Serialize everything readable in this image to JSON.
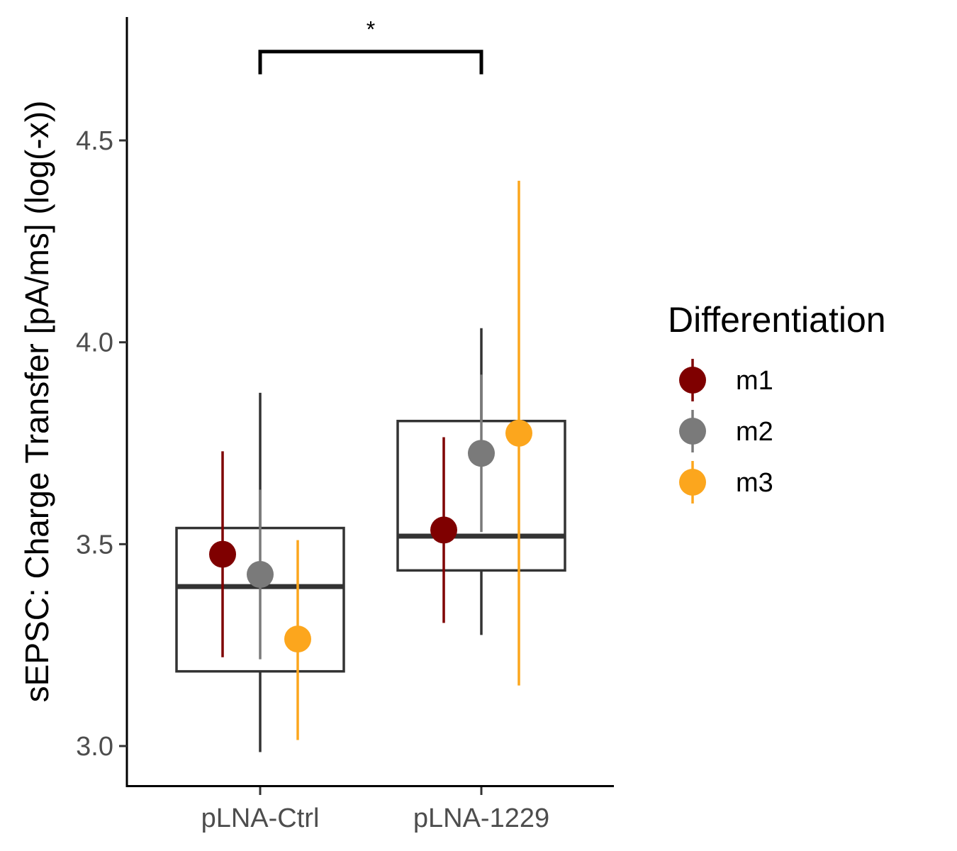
{
  "chart_data": {
    "type": "boxplot",
    "title": "",
    "xlabel": "",
    "ylabel": "sEPSC: Charge Transfer [pA/ms] (log(-x))",
    "categories": [
      "pLNA-Ctrl",
      "pLNA-1229"
    ],
    "ylim": [
      2.9,
      4.75
    ],
    "yticks": [
      3.0,
      3.5,
      4.0,
      4.5
    ],
    "ytick_labels": [
      "3.0",
      "3.5",
      "4.0",
      "4.5"
    ],
    "grid": false,
    "boxes": [
      {
        "category": "pLNA-Ctrl",
        "q1": 3.185,
        "median": 3.395,
        "q3": 3.54,
        "whisker_low": 2.985,
        "whisker_high": 3.875
      },
      {
        "category": "pLNA-1229",
        "q1": 3.435,
        "median": 3.52,
        "q3": 3.805,
        "whisker_low": 3.275,
        "whisker_high": 4.035
      }
    ],
    "series": [
      {
        "name": "m1",
        "color": "#7f0000",
        "points": [
          {
            "category": "pLNA-Ctrl",
            "mean": 3.475,
            "low": 3.22,
            "high": 3.73
          },
          {
            "category": "pLNA-1229",
            "mean": 3.535,
            "low": 3.305,
            "high": 3.765
          }
        ]
      },
      {
        "name": "m2",
        "color": "#7a7a7a",
        "points": [
          {
            "category": "pLNA-Ctrl",
            "mean": 3.425,
            "low": 3.215,
            "high": 3.635
          },
          {
            "category": "pLNA-1229",
            "mean": 3.725,
            "low": 3.53,
            "high": 3.92
          }
        ]
      },
      {
        "name": "m3",
        "color": "#fca61d",
        "points": [
          {
            "category": "pLNA-Ctrl",
            "mean": 3.265,
            "low": 3.015,
            "high": 3.51
          },
          {
            "category": "pLNA-1229",
            "mean": 3.775,
            "low": 3.15,
            "high": 4.4
          }
        ]
      }
    ],
    "significance": {
      "from": "pLNA-Ctrl",
      "to": "pLNA-1229",
      "label": "*",
      "y": 4.72
    },
    "legend": {
      "title": "Differentiation",
      "position": "right"
    }
  }
}
